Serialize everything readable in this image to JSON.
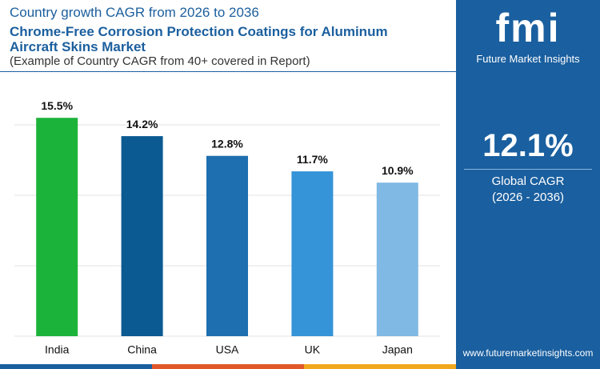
{
  "header": {
    "kicker": "Country growth CAGR from 2026 to 2036",
    "title": "Chrome-Free Corrosion Protection Coatings for Aluminum Aircraft Skins Market",
    "note": "(Example of Country CAGR from 40+ covered in Report)"
  },
  "chart_data": {
    "type": "bar",
    "categories": [
      "India",
      "China",
      "USA",
      "UK",
      "Japan"
    ],
    "values": [
      15.5,
      14.2,
      12.8,
      11.7,
      10.9
    ],
    "value_labels": [
      "15.5%",
      "14.2%",
      "12.8%",
      "11.7%",
      "10.9%"
    ],
    "colors": [
      "#1cb33a",
      "#0b5a91",
      "#1d6fb0",
      "#3593d8",
      "#80b9e3"
    ],
    "ylim": [
      0,
      17.5
    ],
    "yticks": [
      0,
      5,
      10,
      15
    ],
    "grid": true
  },
  "side_panel": {
    "value": "12.1%",
    "label": "Global CAGR",
    "period": "(2026 - 2036)"
  },
  "logo": {
    "mark": "fmi",
    "name": "Future Market Insights"
  },
  "footer": {
    "website": "www.futuremarketinsights.com"
  }
}
